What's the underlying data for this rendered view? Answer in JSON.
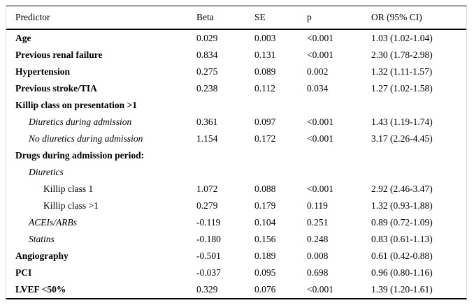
{
  "table": {
    "columns": {
      "predictor": "Predictor",
      "beta": "Beta",
      "se": "SE",
      "p": "p",
      "or_ci": "OR (95% CI)"
    },
    "rows": [
      {
        "predictor": "Age",
        "beta": "0.029",
        "se": "0.003",
        "p": "<0.001",
        "or_ci": "1.03 (1.02-1.04)"
      },
      {
        "predictor": "Previous renal failure",
        "beta": "0.834",
        "se": "0.131",
        "p": "<0.001",
        "or_ci": "2.30 (1.78-2.98)"
      },
      {
        "predictor": "Hypertension",
        "beta": "0.275",
        "se": "0.089",
        "p": "0.002",
        "or_ci": "1.32 (1.11-1.57)"
      },
      {
        "predictor": "Previous stroke/TIA",
        "beta": "0.238",
        "se": "0.112",
        "p": "0.034",
        "or_ci": "1.27 (1.02-1.58)"
      },
      {
        "predictor": "Killip class on presentation >1",
        "beta": "",
        "se": "",
        "p": "",
        "or_ci": ""
      },
      {
        "predictor": "Diuretics during admission",
        "beta": "0.361",
        "se": "0.097",
        "p": "<0.001",
        "or_ci": "1.43 (1.19-1.74)"
      },
      {
        "predictor": "No diuretics during admission",
        "beta": "1.154",
        "se": "0.172",
        "p": "<0.001",
        "or_ci": "3.17 (2.26-4.45)"
      },
      {
        "predictor": "Drugs during admission period:",
        "beta": "",
        "se": "",
        "p": "",
        "or_ci": ""
      },
      {
        "predictor": "Diuretics",
        "beta": "",
        "se": "",
        "p": "",
        "or_ci": ""
      },
      {
        "predictor": "Killip class 1",
        "beta": "1.072",
        "se": "0.088",
        "p": "<0.001",
        "or_ci": "2.92 (2.46-3.47)"
      },
      {
        "predictor": "Killip class >1",
        "beta": "0.279",
        "se": "0.179",
        "p": "0.119",
        "or_ci": "1.32 (0.93-1.88)"
      },
      {
        "predictor": "ACEIs/ARBs",
        "beta": "-0.119",
        "se": "0.104",
        "p": "0.251",
        "or_ci": "0.89 (0.72-1.09)"
      },
      {
        "predictor": "Statins",
        "beta": "-0.180",
        "se": "0.156",
        "p": "0.248",
        "or_ci": "0.83 (0.61-1.13)"
      },
      {
        "predictor": "Angiography",
        "beta": "-0.501",
        "se": "0.189",
        "p": "0.008",
        "or_ci": "0.61 (0.42-0.88)"
      },
      {
        "predictor": "PCI",
        "beta": "-0.037",
        "se": "0.095",
        "p": "0.698",
        "or_ci": "0.96 (0.80-1.16)"
      },
      {
        "predictor": "LVEF <50%",
        "beta": "0.329",
        "se": "0.076",
        "p": "<0.001",
        "or_ci": "1.39 (1.20-1.61)"
      }
    ]
  }
}
